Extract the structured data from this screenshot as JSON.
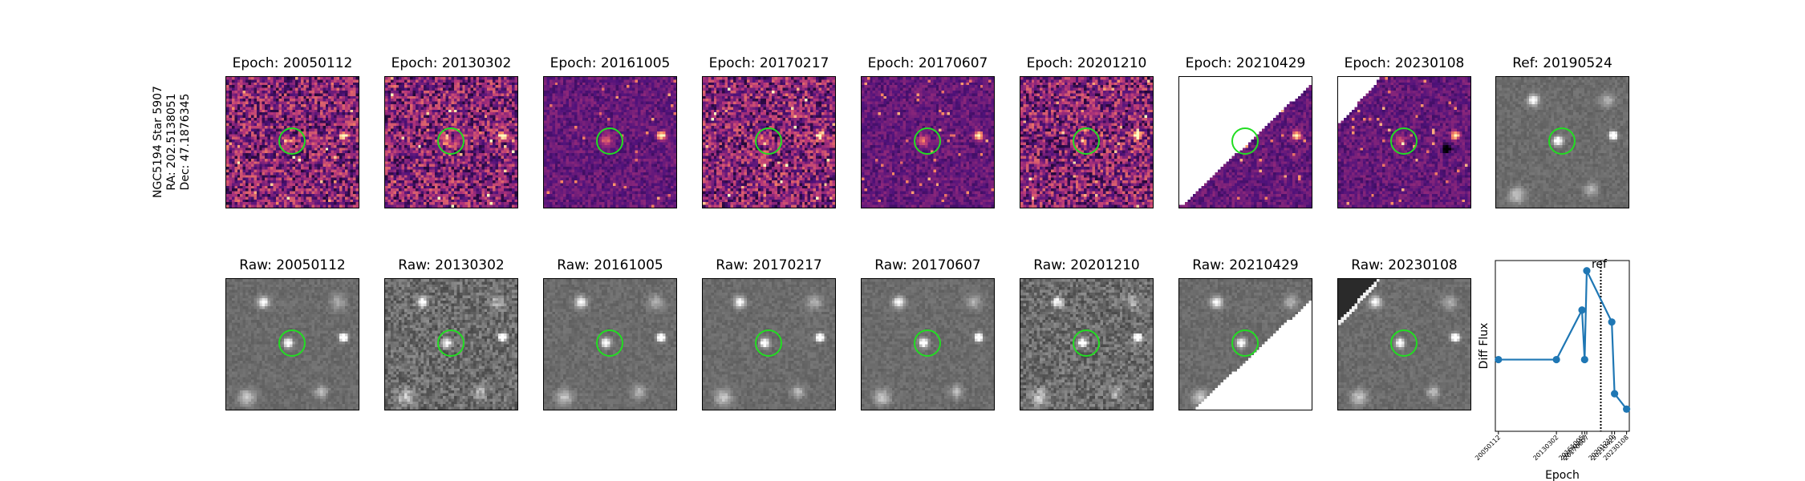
{
  "star": {
    "name": "NGC5194 Star 5907",
    "ra": "RA: 202.5138051",
    "dec": "Dec: 47.1876345"
  },
  "diff_panels": [
    {
      "title": "Epoch: 20050112",
      "style": "noisy",
      "mask": "none"
    },
    {
      "title": "Epoch: 20130302",
      "style": "noisy",
      "mask": "none"
    },
    {
      "title": "Epoch: 20161005",
      "style": "smooth",
      "mask": "none"
    },
    {
      "title": "Epoch: 20170217",
      "style": "noisy",
      "mask": "none"
    },
    {
      "title": "Epoch: 20170607",
      "style": "smooth",
      "mask": "none"
    },
    {
      "title": "Epoch: 20201210",
      "style": "noisy",
      "mask": "none"
    },
    {
      "title": "Epoch: 20210429",
      "style": "smooth",
      "mask": "upper-left-white"
    },
    {
      "title": "Epoch: 20230108",
      "style": "smooth",
      "mask": "top-left-corner-white"
    },
    {
      "title": "Ref: 20190524",
      "style": "reference",
      "mask": "none"
    }
  ],
  "raw_panels": [
    {
      "title": "Raw: 20050112",
      "style": "smooth",
      "mask": "none"
    },
    {
      "title": "Raw: 20130302",
      "style": "noisy",
      "mask": "none"
    },
    {
      "title": "Raw: 20161005",
      "style": "smooth",
      "mask": "none"
    },
    {
      "title": "Raw: 20170217",
      "style": "smooth",
      "mask": "none"
    },
    {
      "title": "Raw: 20170607",
      "style": "smooth",
      "mask": "none"
    },
    {
      "title": "Raw: 20201210",
      "style": "noisy",
      "mask": "none"
    },
    {
      "title": "Raw: 20210429",
      "style": "smooth",
      "mask": "lower-left-white"
    },
    {
      "title": "Raw: 20230108",
      "style": "smooth",
      "mask": "top-left-corner-dark"
    }
  ],
  "colors": {
    "ring": "#22dd22",
    "line": "#1f77b4",
    "white": "#ffffff",
    "dark_mask": "#2a2a2a"
  },
  "chart_data": {
    "type": "line",
    "xlabel": "Epoch",
    "ylabel": "Diff Flux",
    "categories": [
      "20050112",
      "20130302",
      "20161005",
      "20170217",
      "20170607",
      "20201210",
      "20210429",
      "20230108"
    ],
    "x_years": [
      2005.03,
      2013.17,
      2016.76,
      2017.13,
      2017.43,
      2020.94,
      2021.33,
      2023.02
    ],
    "values": [
      0.42,
      0.42,
      0.71,
      0.42,
      0.94,
      0.64,
      0.22,
      0.13
    ],
    "xlim": [
      2004.6,
      2023.4
    ],
    "ylim": [
      0.0,
      1.0
    ],
    "reference_line": {
      "x": 2019.4,
      "label": "ref",
      "style": "dotted"
    },
    "marker": "circle"
  }
}
